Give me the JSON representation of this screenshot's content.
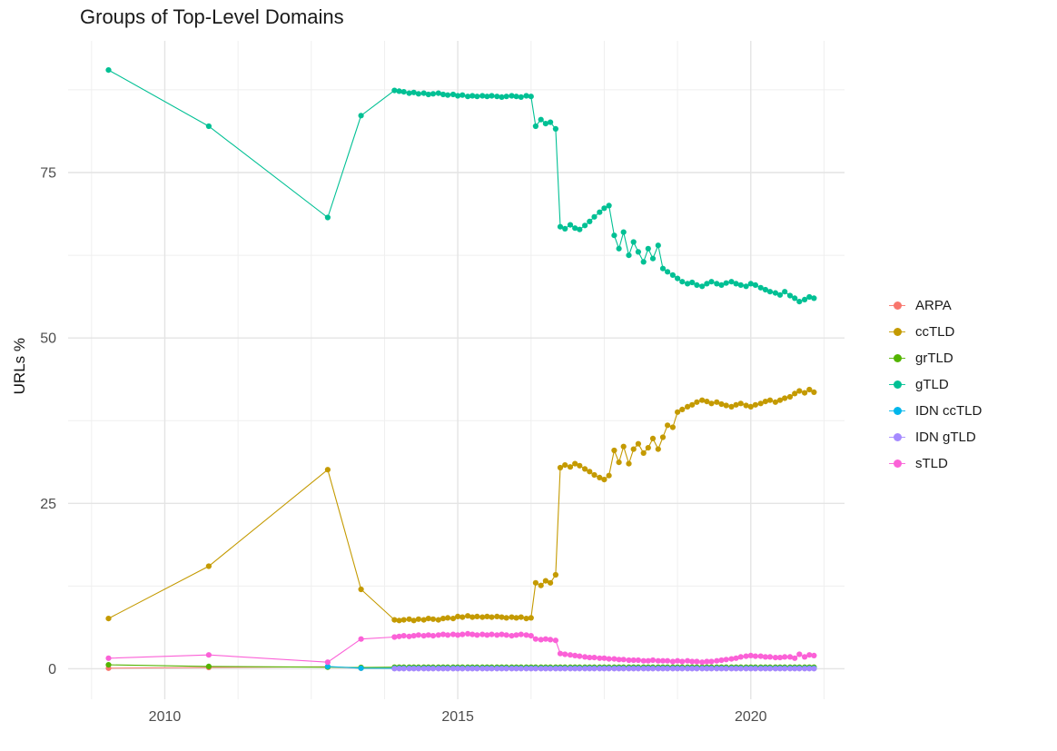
{
  "chart_data": {
    "type": "line",
    "title": "Groups of Top-Level Domains",
    "xlabel": "",
    "ylabel": "URLs %",
    "x_ticks": [
      2010,
      2015,
      2020
    ],
    "x_minor_ticks": [
      2008.75,
      2011.25,
      2012.5,
      2013.75,
      2016.25,
      2017.5,
      2018.75,
      2021.25
    ],
    "y_ticks": [
      0,
      25,
      50,
      75
    ],
    "y_minor_ticks": [
      12.5,
      37.5,
      62.5,
      87.5
    ],
    "xlim": [
      2008.35,
      2021.6
    ],
    "ylim": [
      -4.6,
      94.9
    ],
    "grid": true,
    "legend_position": "right",
    "background": "#FFFFFF",
    "dense_x": [
      2013.92,
      2014.0,
      2014.08,
      2014.17,
      2014.25,
      2014.33,
      2014.42,
      2014.5,
      2014.58,
      2014.67,
      2014.75,
      2014.83,
      2014.92,
      2015.0,
      2015.08,
      2015.17,
      2015.25,
      2015.33,
      2015.42,
      2015.5,
      2015.58,
      2015.67,
      2015.75,
      2015.83,
      2015.92,
      2016.0,
      2016.08,
      2016.17,
      2016.25,
      2016.33,
      2016.42,
      2016.5,
      2016.58,
      2016.67,
      2016.75,
      2016.83,
      2016.92,
      2017.0,
      2017.08,
      2017.17,
      2017.25,
      2017.33,
      2017.42,
      2017.5,
      2017.58,
      2017.67,
      2017.75,
      2017.83,
      2017.92,
      2018.0,
      2018.08,
      2018.17,
      2018.25,
      2018.33,
      2018.42,
      2018.5,
      2018.58,
      2018.67,
      2018.75,
      2018.83,
      2018.92,
      2019.0,
      2019.08,
      2019.17,
      2019.25,
      2019.33,
      2019.42,
      2019.5,
      2019.58,
      2019.67,
      2019.75,
      2019.83,
      2019.92,
      2020.0,
      2020.08,
      2020.17,
      2020.25,
      2020.33,
      2020.42,
      2020.5,
      2020.58,
      2020.67,
      2020.75,
      2020.83,
      2020.92,
      2021.0,
      2021.08
    ],
    "series": [
      {
        "name": "ARPA",
        "color": "#F8766D",
        "sparse": [
          [
            2009.04,
            0.1
          ],
          [
            2010.75,
            0.2
          ],
          [
            2012.78,
            0.3
          ],
          [
            2013.35,
            0.1
          ]
        ],
        "dense_y_const": 0.05
      },
      {
        "name": "ccTLD",
        "color": "#C49A00",
        "sparse": [
          [
            2009.04,
            7.6
          ],
          [
            2010.75,
            15.5
          ],
          [
            2012.78,
            30.1
          ],
          [
            2013.35,
            12.0
          ]
        ],
        "dense_y": [
          7.4,
          7.3,
          7.4,
          7.5,
          7.3,
          7.5,
          7.4,
          7.6,
          7.5,
          7.4,
          7.6,
          7.7,
          7.6,
          7.9,
          7.8,
          8.0,
          7.8,
          7.9,
          7.8,
          7.9,
          7.8,
          7.9,
          7.8,
          7.7,
          7.8,
          7.7,
          7.8,
          7.6,
          7.7,
          13.0,
          12.6,
          13.3,
          13.0,
          14.2,
          30.4,
          30.8,
          30.5,
          31.0,
          30.7,
          30.2,
          29.8,
          29.3,
          28.9,
          28.6,
          29.2,
          33.0,
          31.2,
          33.6,
          31.0,
          33.2,
          34.0,
          32.6,
          33.4,
          34.8,
          33.2,
          35.0,
          36.8,
          36.5,
          38.8,
          39.2,
          39.6,
          39.9,
          40.3,
          40.6,
          40.4,
          40.1,
          40.3,
          40.0,
          39.8,
          39.6,
          39.9,
          40.1,
          39.8,
          39.6,
          39.9,
          40.1,
          40.4,
          40.6,
          40.3,
          40.6,
          40.9,
          41.1,
          41.6,
          42.0,
          41.7,
          42.2,
          41.8
        ]
      },
      {
        "name": "grTLD",
        "color": "#53B400",
        "sparse": [
          [
            2009.04,
            0.6
          ],
          [
            2010.75,
            0.35
          ],
          [
            2012.78,
            0.25
          ],
          [
            2013.35,
            0.2
          ]
        ],
        "dense_y_const": 0.25
      },
      {
        "name": "gTLD",
        "color": "#00C094",
        "sparse": [
          [
            2009.04,
            90.5
          ],
          [
            2010.75,
            82.0
          ],
          [
            2012.78,
            68.2
          ],
          [
            2013.35,
            83.6
          ]
        ],
        "dense_y": [
          87.4,
          87.3,
          87.2,
          87.0,
          87.1,
          86.9,
          87.0,
          86.8,
          86.9,
          87.0,
          86.8,
          86.7,
          86.8,
          86.6,
          86.7,
          86.5,
          86.6,
          86.5,
          86.6,
          86.5,
          86.6,
          86.5,
          86.4,
          86.5,
          86.6,
          86.5,
          86.4,
          86.6,
          86.5,
          82.0,
          83.0,
          82.4,
          82.6,
          81.6,
          66.8,
          66.5,
          67.1,
          66.6,
          66.4,
          67.0,
          67.6,
          68.3,
          69.0,
          69.6,
          70.0,
          65.5,
          63.5,
          66.0,
          62.5,
          64.5,
          63.0,
          61.5,
          63.5,
          62.0,
          64.0,
          60.5,
          60.0,
          59.5,
          59.0,
          58.5,
          58.2,
          58.4,
          58.0,
          57.8,
          58.2,
          58.5,
          58.2,
          58.0,
          58.3,
          58.5,
          58.2,
          58.0,
          57.8,
          58.2,
          58.0,
          57.6,
          57.3,
          57.0,
          56.8,
          56.5,
          57.0,
          56.4,
          56.0,
          55.5,
          55.8,
          56.2,
          56.0
        ]
      },
      {
        "name": "IDN ccTLD",
        "color": "#00B6EB",
        "sparse": [
          [
            2012.78,
            0.35
          ],
          [
            2013.35,
            0.1
          ]
        ],
        "dense_y_const": 0.08
      },
      {
        "name": "IDN gTLD",
        "color": "#A58AFF",
        "sparse": [],
        "dense_y_const": 0.03
      },
      {
        "name": "sTLD",
        "color": "#FB61D7",
        "sparse": [
          [
            2009.04,
            1.6
          ],
          [
            2010.75,
            2.1
          ],
          [
            2012.78,
            1.0
          ],
          [
            2013.35,
            4.5
          ]
        ],
        "dense_y": [
          4.8,
          4.9,
          5.0,
          4.9,
          5.0,
          5.1,
          5.0,
          5.1,
          5.0,
          5.1,
          5.2,
          5.1,
          5.2,
          5.1,
          5.2,
          5.3,
          5.2,
          5.1,
          5.2,
          5.1,
          5.2,
          5.1,
          5.2,
          5.1,
          5.0,
          5.1,
          5.2,
          5.1,
          5.0,
          4.5,
          4.4,
          4.5,
          4.4,
          4.3,
          2.3,
          2.2,
          2.1,
          2.0,
          1.9,
          1.8,
          1.7,
          1.7,
          1.6,
          1.6,
          1.5,
          1.5,
          1.4,
          1.4,
          1.3,
          1.3,
          1.3,
          1.2,
          1.2,
          1.3,
          1.2,
          1.2,
          1.2,
          1.1,
          1.2,
          1.1,
          1.2,
          1.1,
          1.1,
          1.0,
          1.1,
          1.1,
          1.2,
          1.3,
          1.4,
          1.5,
          1.6,
          1.8,
          1.9,
          2.0,
          1.9,
          1.9,
          1.8,
          1.8,
          1.7,
          1.7,
          1.8,
          1.8,
          1.6,
          2.2,
          1.8,
          2.1,
          2.0
        ]
      }
    ]
  }
}
